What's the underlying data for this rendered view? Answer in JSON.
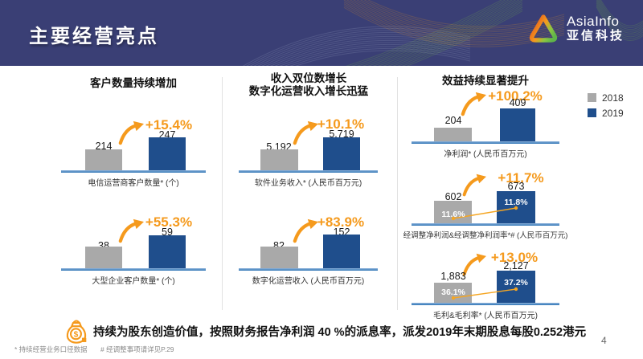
{
  "header": {
    "title": "主要经营亮点",
    "brand_en": "AsiaInfo",
    "brand_cn": "亚信科技"
  },
  "legend": {
    "y2018": "2018",
    "y2019": "2019"
  },
  "sections": [
    {
      "title_lines": [
        "客户数量持续增加"
      ]
    },
    {
      "title_lines": [
        "收入双位数增长",
        "数字化运营收入增长迅猛"
      ]
    },
    {
      "title_lines": [
        "效益持续显著提升"
      ]
    }
  ],
  "charts": [
    {
      "v2018": "214",
      "v2019": "247",
      "pct": "+15.4%",
      "caption": "电信运营商客户数量* (个)",
      "bar_h_2018": 26,
      "bar_h_2019": 41
    },
    {
      "v2018": "38",
      "v2019": "59",
      "pct": "+55.3%",
      "caption": "大型企业客户数量* (个)",
      "bar_h_2018": 27,
      "bar_h_2019": 41
    },
    {
      "v2018": "5,192",
      "v2019": "5,719",
      "pct": "+10.1%",
      "caption": "软件业务收入* (人民币百万元)",
      "bar_h_2018": 26,
      "bar_h_2019": 41
    },
    {
      "v2018": "82",
      "v2019": "152",
      "pct": "+83.9%",
      "caption": "数字化运营收入 (人民币百万元)",
      "bar_h_2018": 27,
      "bar_h_2019": 42
    },
    {
      "v2018": "204",
      "v2019": "409",
      "pct": "+100.2%",
      "caption": "净利润* (人民币百万元)",
      "bar_h_2018": 17,
      "bar_h_2019": 41
    },
    {
      "v2018": "602",
      "v2019": "673",
      "pct": "+11.7%",
      "caption": "经调整净利润&经调整净利润率*# (人民币百万元)",
      "bar_h_2018": 28,
      "bar_h_2019": 40,
      "m2018": "11.6%",
      "m2019": "11.8%"
    },
    {
      "v2018": "1,883",
      "v2019": "2,127",
      "pct": "+13.0%",
      "caption": "毛利&毛利率* (人民币百万元)",
      "bar_h_2018": 25,
      "bar_h_2019": 40,
      "m2018": "36.1%",
      "m2019": "37.2%"
    }
  ],
  "chart_data": [
    {
      "type": "bar",
      "title": "客户数量持续增加",
      "categories": [
        "2018",
        "2019"
      ],
      "values": [
        214,
        247
      ],
      "change": "+15.4%",
      "ylabel": "电信运营商客户数量* (个)",
      "legend_position": "right",
      "grid": false
    },
    {
      "type": "bar",
      "categories": [
        "2018",
        "2019"
      ],
      "values": [
        38,
        59
      ],
      "change": "+55.3%",
      "ylabel": "大型企业客户数量* (个)",
      "grid": false
    },
    {
      "type": "bar",
      "title": "收入双位数增长 数字化运营收入增长迅猛",
      "categories": [
        "2018",
        "2019"
      ],
      "values": [
        5192,
        5719
      ],
      "change": "+10.1%",
      "ylabel": "软件业务收入* (人民币百万元)",
      "grid": false
    },
    {
      "type": "bar",
      "categories": [
        "2018",
        "2019"
      ],
      "values": [
        82,
        152
      ],
      "change": "+83.9%",
      "ylabel": "数字化运营收入 (人民币百万元)",
      "grid": false
    },
    {
      "type": "bar",
      "title": "效益持续显著提升",
      "categories": [
        "2018",
        "2019"
      ],
      "values": [
        204,
        409
      ],
      "change": "+100.2%",
      "ylabel": "净利润* (人民币百万元)",
      "grid": false
    },
    {
      "type": "bar",
      "categories": [
        "2018",
        "2019"
      ],
      "values": [
        602,
        673
      ],
      "change": "+11.7%",
      "margin_line_pct": [
        11.6,
        11.8
      ],
      "ylabel": "经调整净利润&经调整净利润率*# (人民币百万元)",
      "grid": false
    },
    {
      "type": "bar",
      "categories": [
        "2018",
        "2019"
      ],
      "values": [
        1883,
        2127
      ],
      "change": "+13.0%",
      "margin_line_pct": [
        36.1,
        37.2
      ],
      "ylabel": "毛利&毛利率* (人民币百万元)",
      "grid": false
    }
  ],
  "footer": {
    "dividend_note": "持续为股东创造价值，按照财务报告净利润 40 %的派息率，派发2019年末期股息每股0.252港元",
    "footnote_1": "*  持续经营业务口径数据",
    "footnote_2": "#  经调整事项请详见P.29",
    "page_number": "4"
  },
  "colors": {
    "header_bg": "#3A3F75",
    "bar_2018": "#A9A9A9",
    "bar_2019": "#1F4E8C",
    "accent_orange": "#F59A1D",
    "axis_blue": "#2E74B5"
  }
}
